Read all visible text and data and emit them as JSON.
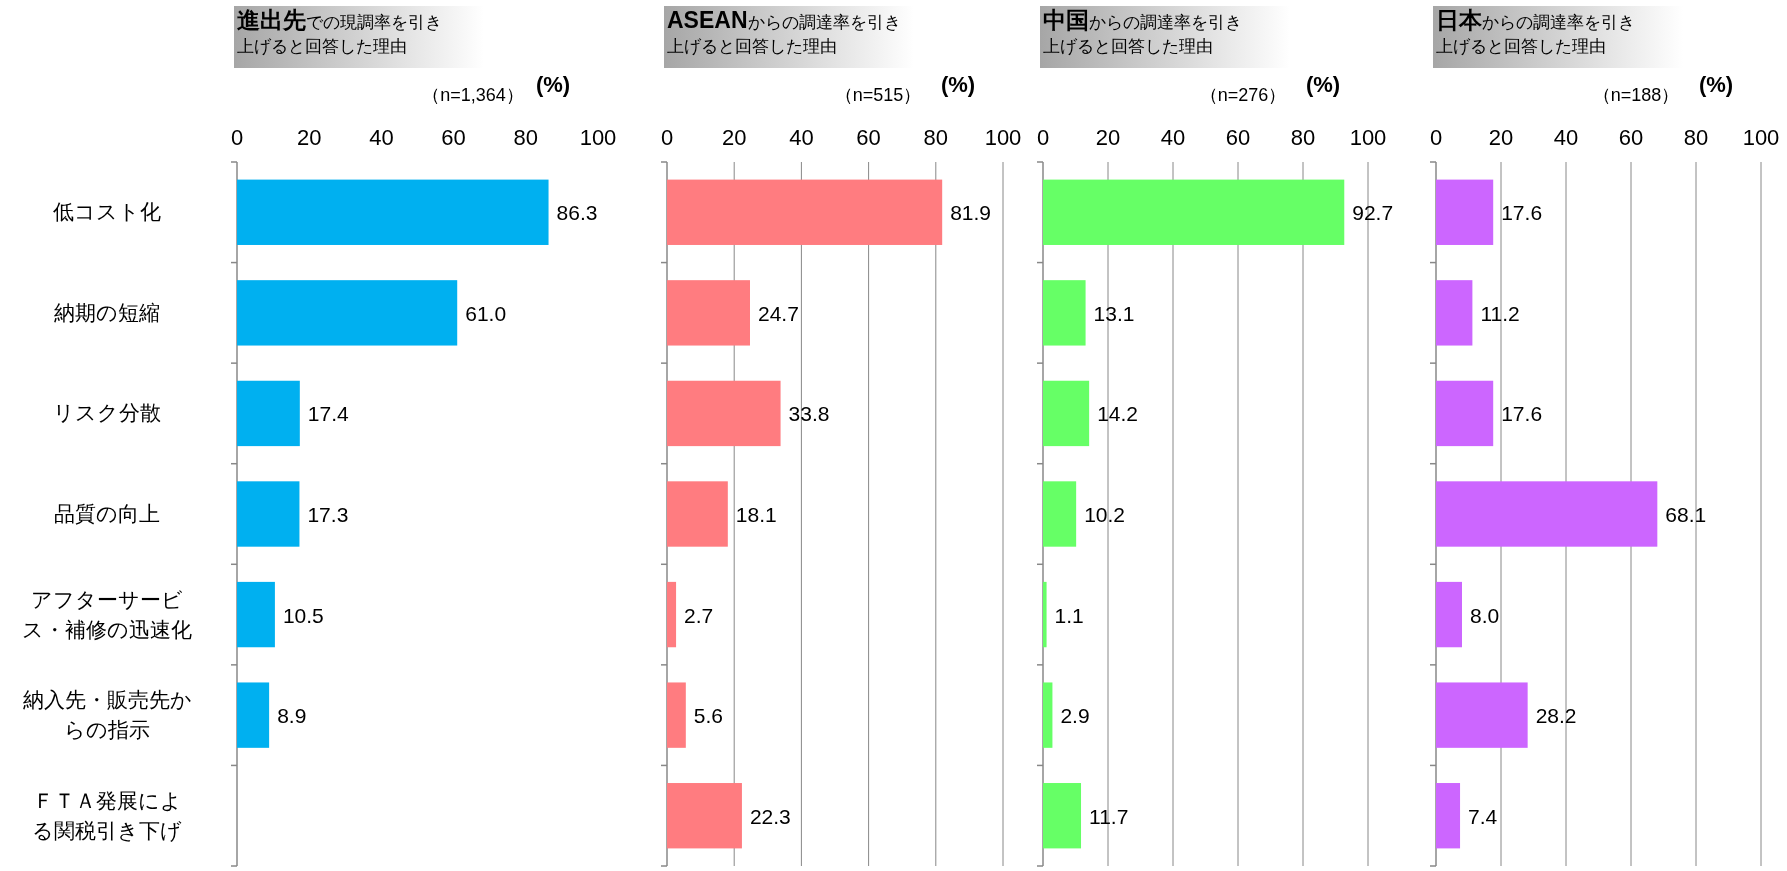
{
  "chart_data": [
    {
      "type": "bar",
      "orientation": "horizontal",
      "title": "**進出先**での現調率を引き上げると回答した理由",
      "subtitle": "（n=1,364）",
      "xlabel": "(%)",
      "categories": [
        "低コスト化",
        "納期の短縮",
        "リスク分散",
        "品質の向上",
        "アフターサービス・補修の迅速化",
        "納入先・販売先からの指示",
        "ＦＴＡ発展による関税引き下げ"
      ],
      "values": [
        86.3,
        61.0,
        17.4,
        17.3,
        10.5,
        8.9,
        null
      ],
      "value_labels": [
        "86.3",
        "61.0",
        "17.4",
        "17.3",
        "10.5",
        "8.9",
        null
      ],
      "color": "#00b0f0",
      "xlim": [
        0,
        100
      ],
      "xticks": [
        0,
        20,
        40,
        60,
        80,
        100
      ],
      "grid": false
    },
    {
      "type": "bar",
      "orientation": "horizontal",
      "title": "**ASEAN**からの調達率を引き上げると回答した理由",
      "subtitle": "（n=515）",
      "xlabel": "(%)",
      "values": [
        81.9,
        24.7,
        33.8,
        18.1,
        2.7,
        5.6,
        22.3
      ],
      "value_labels": [
        "81.9",
        "24.7",
        "33.8",
        "18.1",
        "2.7",
        "5.6",
        "22.3"
      ],
      "color": "#ff7c80",
      "xlim": [
        0,
        100
      ],
      "xticks": [
        0,
        20,
        40,
        60,
        80,
        100
      ],
      "grid": "x",
      "tick_labels": "x"
    },
    {
      "type": "bar",
      "orientation": "horizontal",
      "title": "**中国**からの調達率を引き上げると回答した理由",
      "subtitle": "（n=276）",
      "xlabel": "(%)",
      "values": [
        92.7,
        13.1,
        14.2,
        10.2,
        1.1,
        2.9,
        11.7
      ],
      "value_labels": [
        "92.7",
        "13.1",
        "14.2",
        "10.2",
        "1.1",
        "2.9",
        "11.7"
      ],
      "color": "#66ff66",
      "xlim": [
        0,
        100
      ],
      "xticks": [
        0,
        20,
        40,
        60,
        80,
        100
      ],
      "grid": "x",
      "tick_labels": "x"
    },
    {
      "type": "bar",
      "orientation": "horizontal",
      "title": "**日本**からの調達率を引き上げると回答した理由",
      "subtitle": "（n=188）",
      "xlabel": "(%)",
      "values": [
        17.6,
        11.2,
        17.6,
        68.1,
        8.0,
        28.2,
        7.4
      ],
      "value_labels": [
        "17.6",
        "11.2",
        "17.6",
        "68.1",
        "8.0",
        "28.2",
        "7.4"
      ],
      "color": "#cc66ff",
      "xlim": [
        0,
        100
      ],
      "xticks": [
        0,
        20,
        40,
        60,
        80,
        100
      ],
      "grid": "x",
      "tick_labels": "x"
    }
  ]
}
